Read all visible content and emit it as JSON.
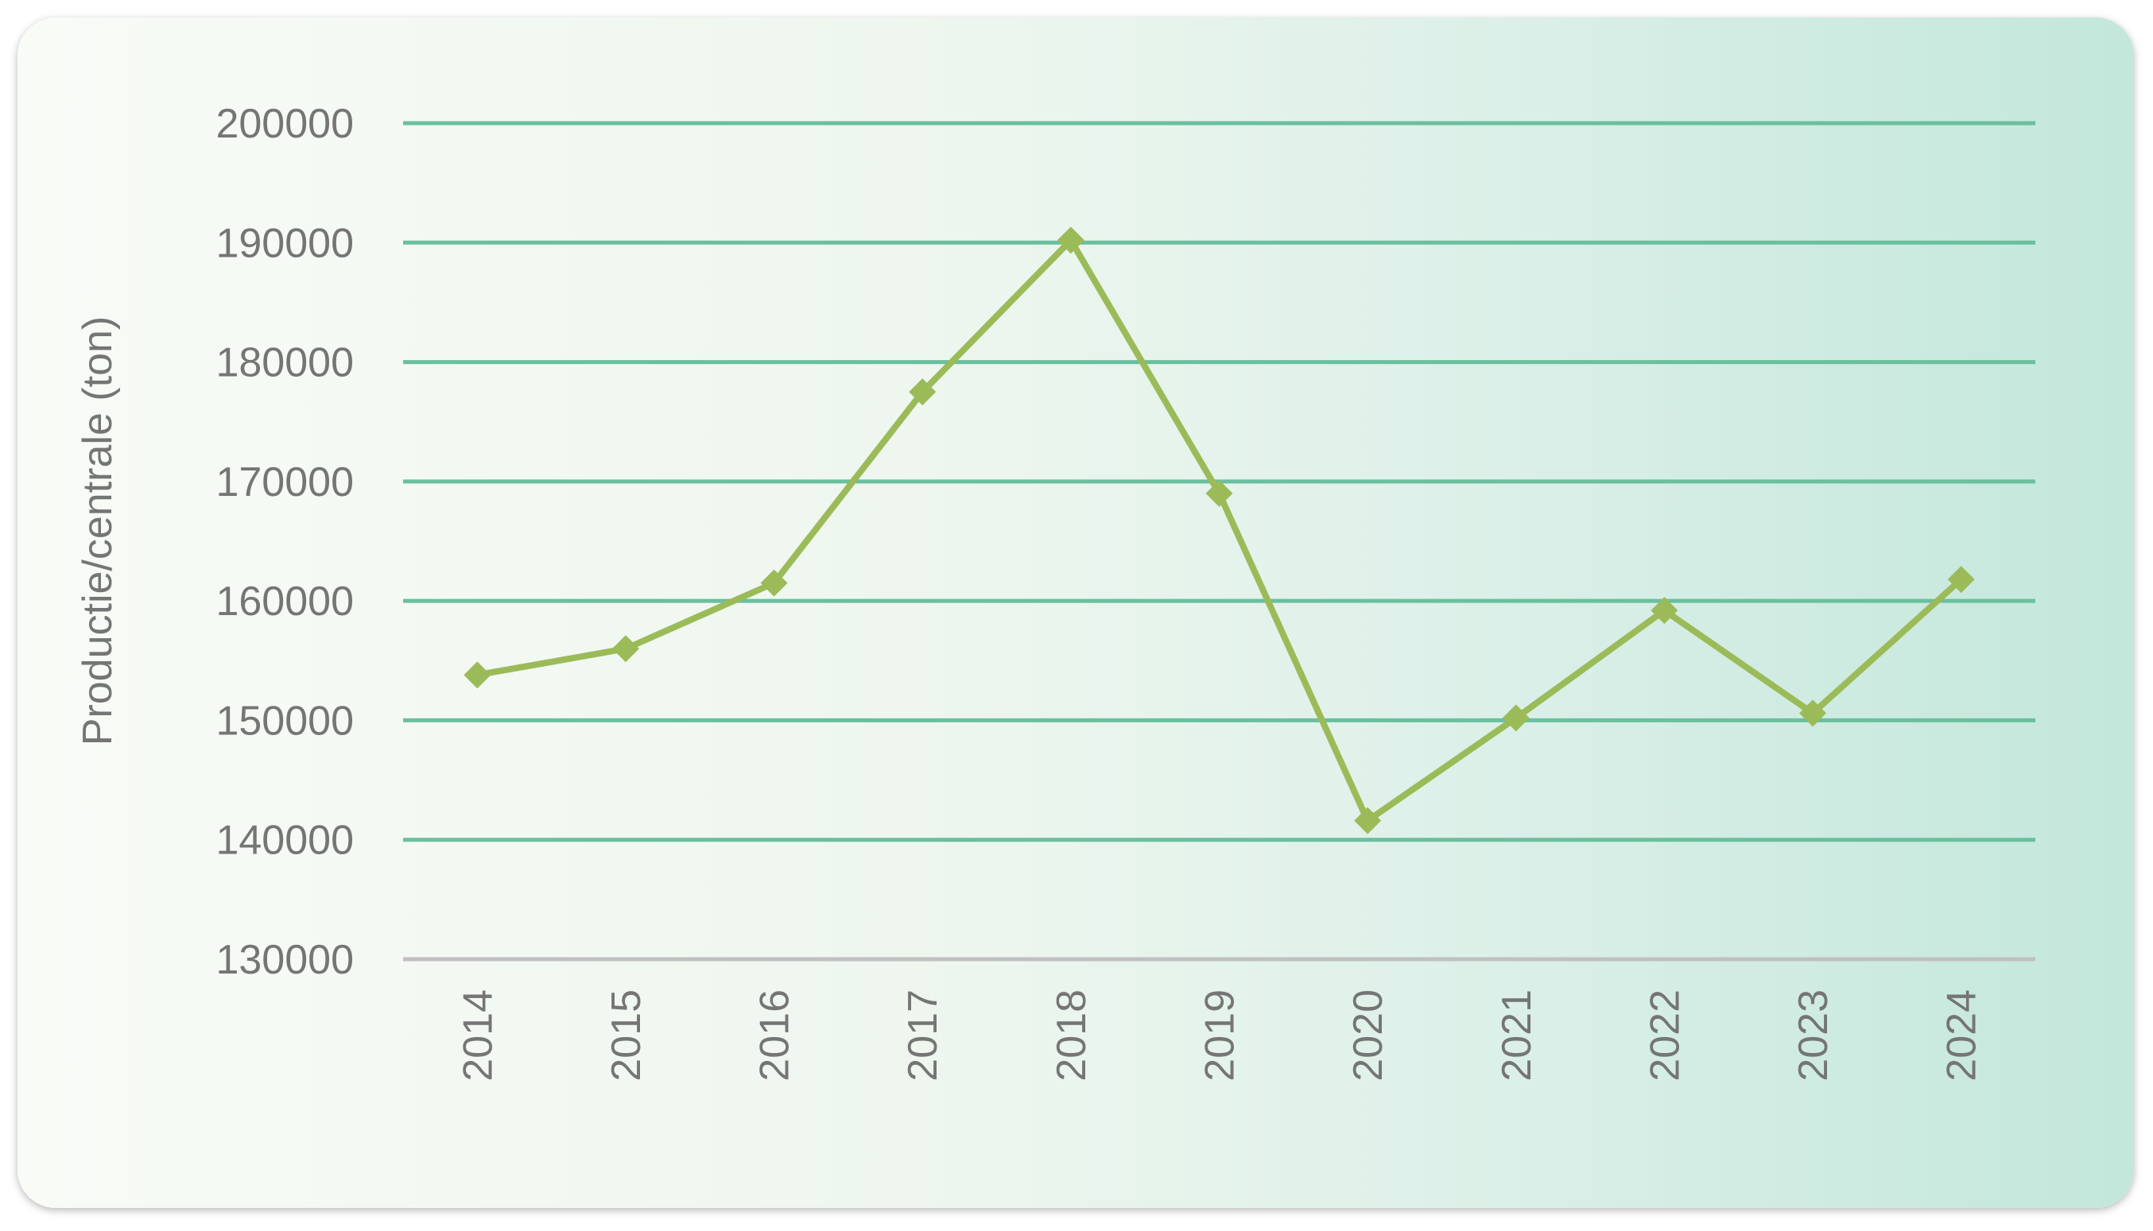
{
  "chart_data": {
    "type": "line",
    "ylabel": "Productie/centrale (ton)",
    "xlabel": "",
    "categories": [
      "2014",
      "2015",
      "2016",
      "2017",
      "2018",
      "2019",
      "2020",
      "2021",
      "2022",
      "2023",
      "2024"
    ],
    "series": [
      {
        "values": [
          153800,
          156000,
          161500,
          177500,
          190200,
          169000,
          141600,
          150200,
          159200,
          150600,
          161800
        ]
      }
    ],
    "ylim": [
      130000,
      200000
    ],
    "yticks": [
      130000,
      140000,
      150000,
      160000,
      170000,
      180000,
      190000,
      200000
    ],
    "grid": true,
    "legend": "none",
    "colors": {
      "line": "#9bbb59",
      "grid": "#6abf9e",
      "baseline": "#c0c0c0",
      "text": "#757575"
    }
  }
}
